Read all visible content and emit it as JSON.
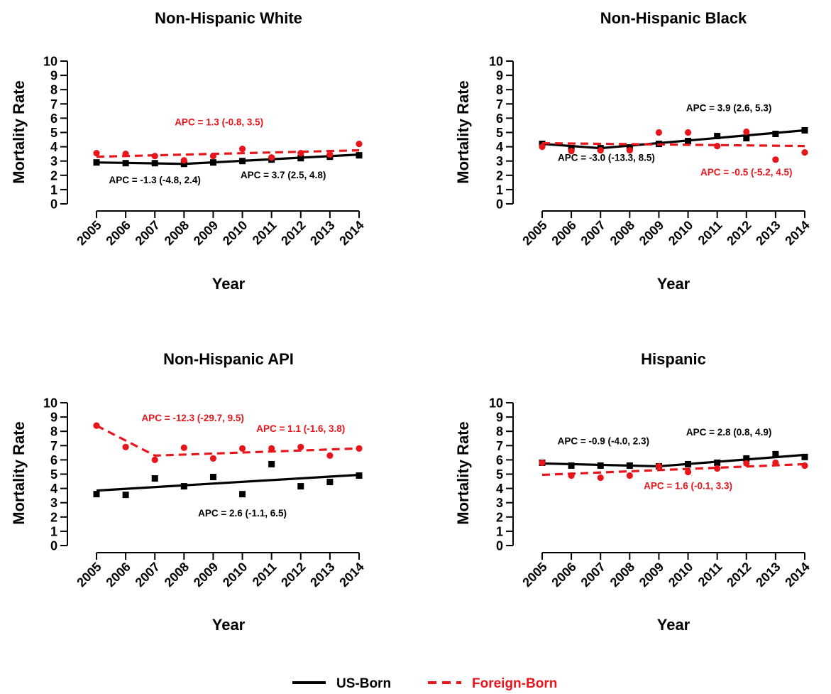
{
  "colors": {
    "us_born": "#000000",
    "foreign_born": "#e8151b"
  },
  "legend": {
    "us_born_label": "US-Born",
    "foreign_born_label": "Foreign-Born"
  },
  "chart_data": [
    {
      "type": "scatter",
      "title": "Non-Hispanic White",
      "xlabel": "Year",
      "ylabel": "Mortality Rate",
      "x": [
        2005,
        2006,
        2007,
        2008,
        2009,
        2010,
        2011,
        2012,
        2013,
        2014
      ],
      "yticks": [
        0,
        1,
        2,
        3,
        4,
        5,
        6,
        7,
        8,
        9,
        10
      ],
      "ylim": [
        0,
        10
      ],
      "grid": false,
      "series": [
        {
          "name": "US-Born",
          "points": [
            2.9,
            2.85,
            2.85,
            2.8,
            2.9,
            3.0,
            3.1,
            3.2,
            3.3,
            3.4
          ],
          "trend": [
            [
              2005,
              2.9
            ],
            [
              2008,
              2.8
            ],
            [
              2014,
              3.45
            ]
          ]
        },
        {
          "name": "Foreign-Born",
          "points": [
            3.55,
            3.5,
            3.35,
            3.05,
            3.35,
            3.85,
            3.25,
            3.55,
            3.45,
            4.2
          ],
          "trend": [
            [
              2005,
              3.3
            ],
            [
              2014,
              3.75
            ]
          ]
        }
      ],
      "annotations": [
        {
          "text": "APC = 1.3 (-0.8, 3.5)",
          "series": "Foreign-Born",
          "x": 2009.2,
          "y": 5.5
        },
        {
          "text": "APC = -1.3 (-4.8, 2.4)",
          "series": "US-Born",
          "x": 2007.0,
          "y": 1.45
        },
        {
          "text": "APC = 3.7 (2.5, 4.8)",
          "series": "US-Born",
          "x": 2011.4,
          "y": 1.8
        }
      ]
    },
    {
      "type": "scatter",
      "title": "Non-Hispanic Black",
      "xlabel": "Year",
      "ylabel": "Mortality Rate",
      "x": [
        2005,
        2006,
        2007,
        2008,
        2009,
        2010,
        2011,
        2012,
        2013,
        2014
      ],
      "yticks": [
        0,
        1,
        2,
        3,
        4,
        5,
        6,
        7,
        8,
        9,
        10
      ],
      "ylim": [
        0,
        10
      ],
      "grid": false,
      "series": [
        {
          "name": "US-Born",
          "points": [
            4.2,
            3.9,
            3.9,
            3.95,
            4.2,
            4.4,
            4.75,
            4.6,
            4.9,
            5.15
          ],
          "trend": [
            [
              2005,
              4.2
            ],
            [
              2007,
              3.9
            ],
            [
              2014,
              5.15
            ]
          ]
        },
        {
          "name": "Foreign-Born",
          "points": [
            4.0,
            3.7,
            3.75,
            3.75,
            5.0,
            5.0,
            4.05,
            5.05,
            3.1,
            3.6
          ],
          "trend": [
            [
              2005,
              4.25
            ],
            [
              2014,
              4.05
            ]
          ]
        }
      ],
      "annotations": [
        {
          "text": "APC = 3.9 (2.6, 5.3)",
          "series": "US-Born",
          "x": 2011.4,
          "y": 6.5
        },
        {
          "text": "APC = -3.0 (-13.3, 8.5)",
          "series": "US-Born",
          "x": 2007.2,
          "y": 3.0
        },
        {
          "text": "APC = -0.5 (-5.2, 4.5)",
          "series": "Foreign-Born",
          "x": 2012.0,
          "y": 2.0
        }
      ]
    },
    {
      "type": "scatter",
      "title": "Non-Hispanic API",
      "xlabel": "Year",
      "ylabel": "Mortality Rate",
      "x": [
        2005,
        2006,
        2007,
        2008,
        2009,
        2010,
        2011,
        2012,
        2013,
        2014
      ],
      "yticks": [
        0,
        1,
        2,
        3,
        4,
        5,
        6,
        7,
        8,
        9,
        10
      ],
      "ylim": [
        0,
        10
      ],
      "grid": false,
      "series": [
        {
          "name": "US-Born",
          "points": [
            3.6,
            3.55,
            4.7,
            4.15,
            4.8,
            3.6,
            5.7,
            4.15,
            4.45,
            4.9
          ],
          "trend": [
            [
              2005,
              3.85
            ],
            [
              2014,
              4.95
            ]
          ]
        },
        {
          "name": "Foreign-Born",
          "points": [
            8.4,
            6.9,
            6.0,
            6.85,
            6.1,
            6.8,
            6.8,
            6.9,
            6.3,
            6.8
          ],
          "trend": [
            [
              2005,
              8.4
            ],
            [
              2007,
              6.3
            ],
            [
              2014,
              6.8
            ]
          ]
        }
      ],
      "annotations": [
        {
          "text": "APC = -12.3 (-29.7, 9.5)",
          "series": "Foreign-Born",
          "x": 2008.3,
          "y": 8.7
        },
        {
          "text": "APC = 1.1 (-1.6, 3.8)",
          "series": "Foreign-Born",
          "x": 2012.0,
          "y": 7.95
        },
        {
          "text": "APC = 2.6 (-1.1, 6.5)",
          "series": "US-Born",
          "x": 2010.0,
          "y": 2.05
        }
      ]
    },
    {
      "type": "scatter",
      "title": "Hispanic",
      "xlabel": "Year",
      "ylabel": "Mortality Rate",
      "x": [
        2005,
        2006,
        2007,
        2008,
        2009,
        2010,
        2011,
        2012,
        2013,
        2014
      ],
      "yticks": [
        0,
        1,
        2,
        3,
        4,
        5,
        6,
        7,
        8,
        9,
        10
      ],
      "ylim": [
        0,
        10
      ],
      "grid": false,
      "series": [
        {
          "name": "US-Born",
          "points": [
            5.8,
            5.6,
            5.6,
            5.6,
            5.55,
            5.7,
            5.8,
            6.1,
            6.4,
            6.2
          ],
          "trend": [
            [
              2005,
              5.75
            ],
            [
              2009,
              5.55
            ],
            [
              2014,
              6.35
            ]
          ]
        },
        {
          "name": "Foreign-Born",
          "points": [
            5.8,
            4.9,
            4.75,
            4.9,
            5.55,
            5.15,
            5.4,
            5.75,
            5.8,
            5.6
          ],
          "trend": [
            [
              2005,
              4.95
            ],
            [
              2014,
              5.7
            ]
          ]
        }
      ],
      "annotations": [
        {
          "text": "APC = -0.9 (-4.0, 2.3)",
          "series": "US-Born",
          "x": 2007.1,
          "y": 7.1
        },
        {
          "text": "APC = 2.8 (0.8, 4.9)",
          "series": "US-Born",
          "x": 2011.4,
          "y": 7.7
        },
        {
          "text": "APC = 1.6 (-0.1, 3.3)",
          "series": "Foreign-Born",
          "x": 2010.0,
          "y": 3.95
        }
      ]
    }
  ]
}
